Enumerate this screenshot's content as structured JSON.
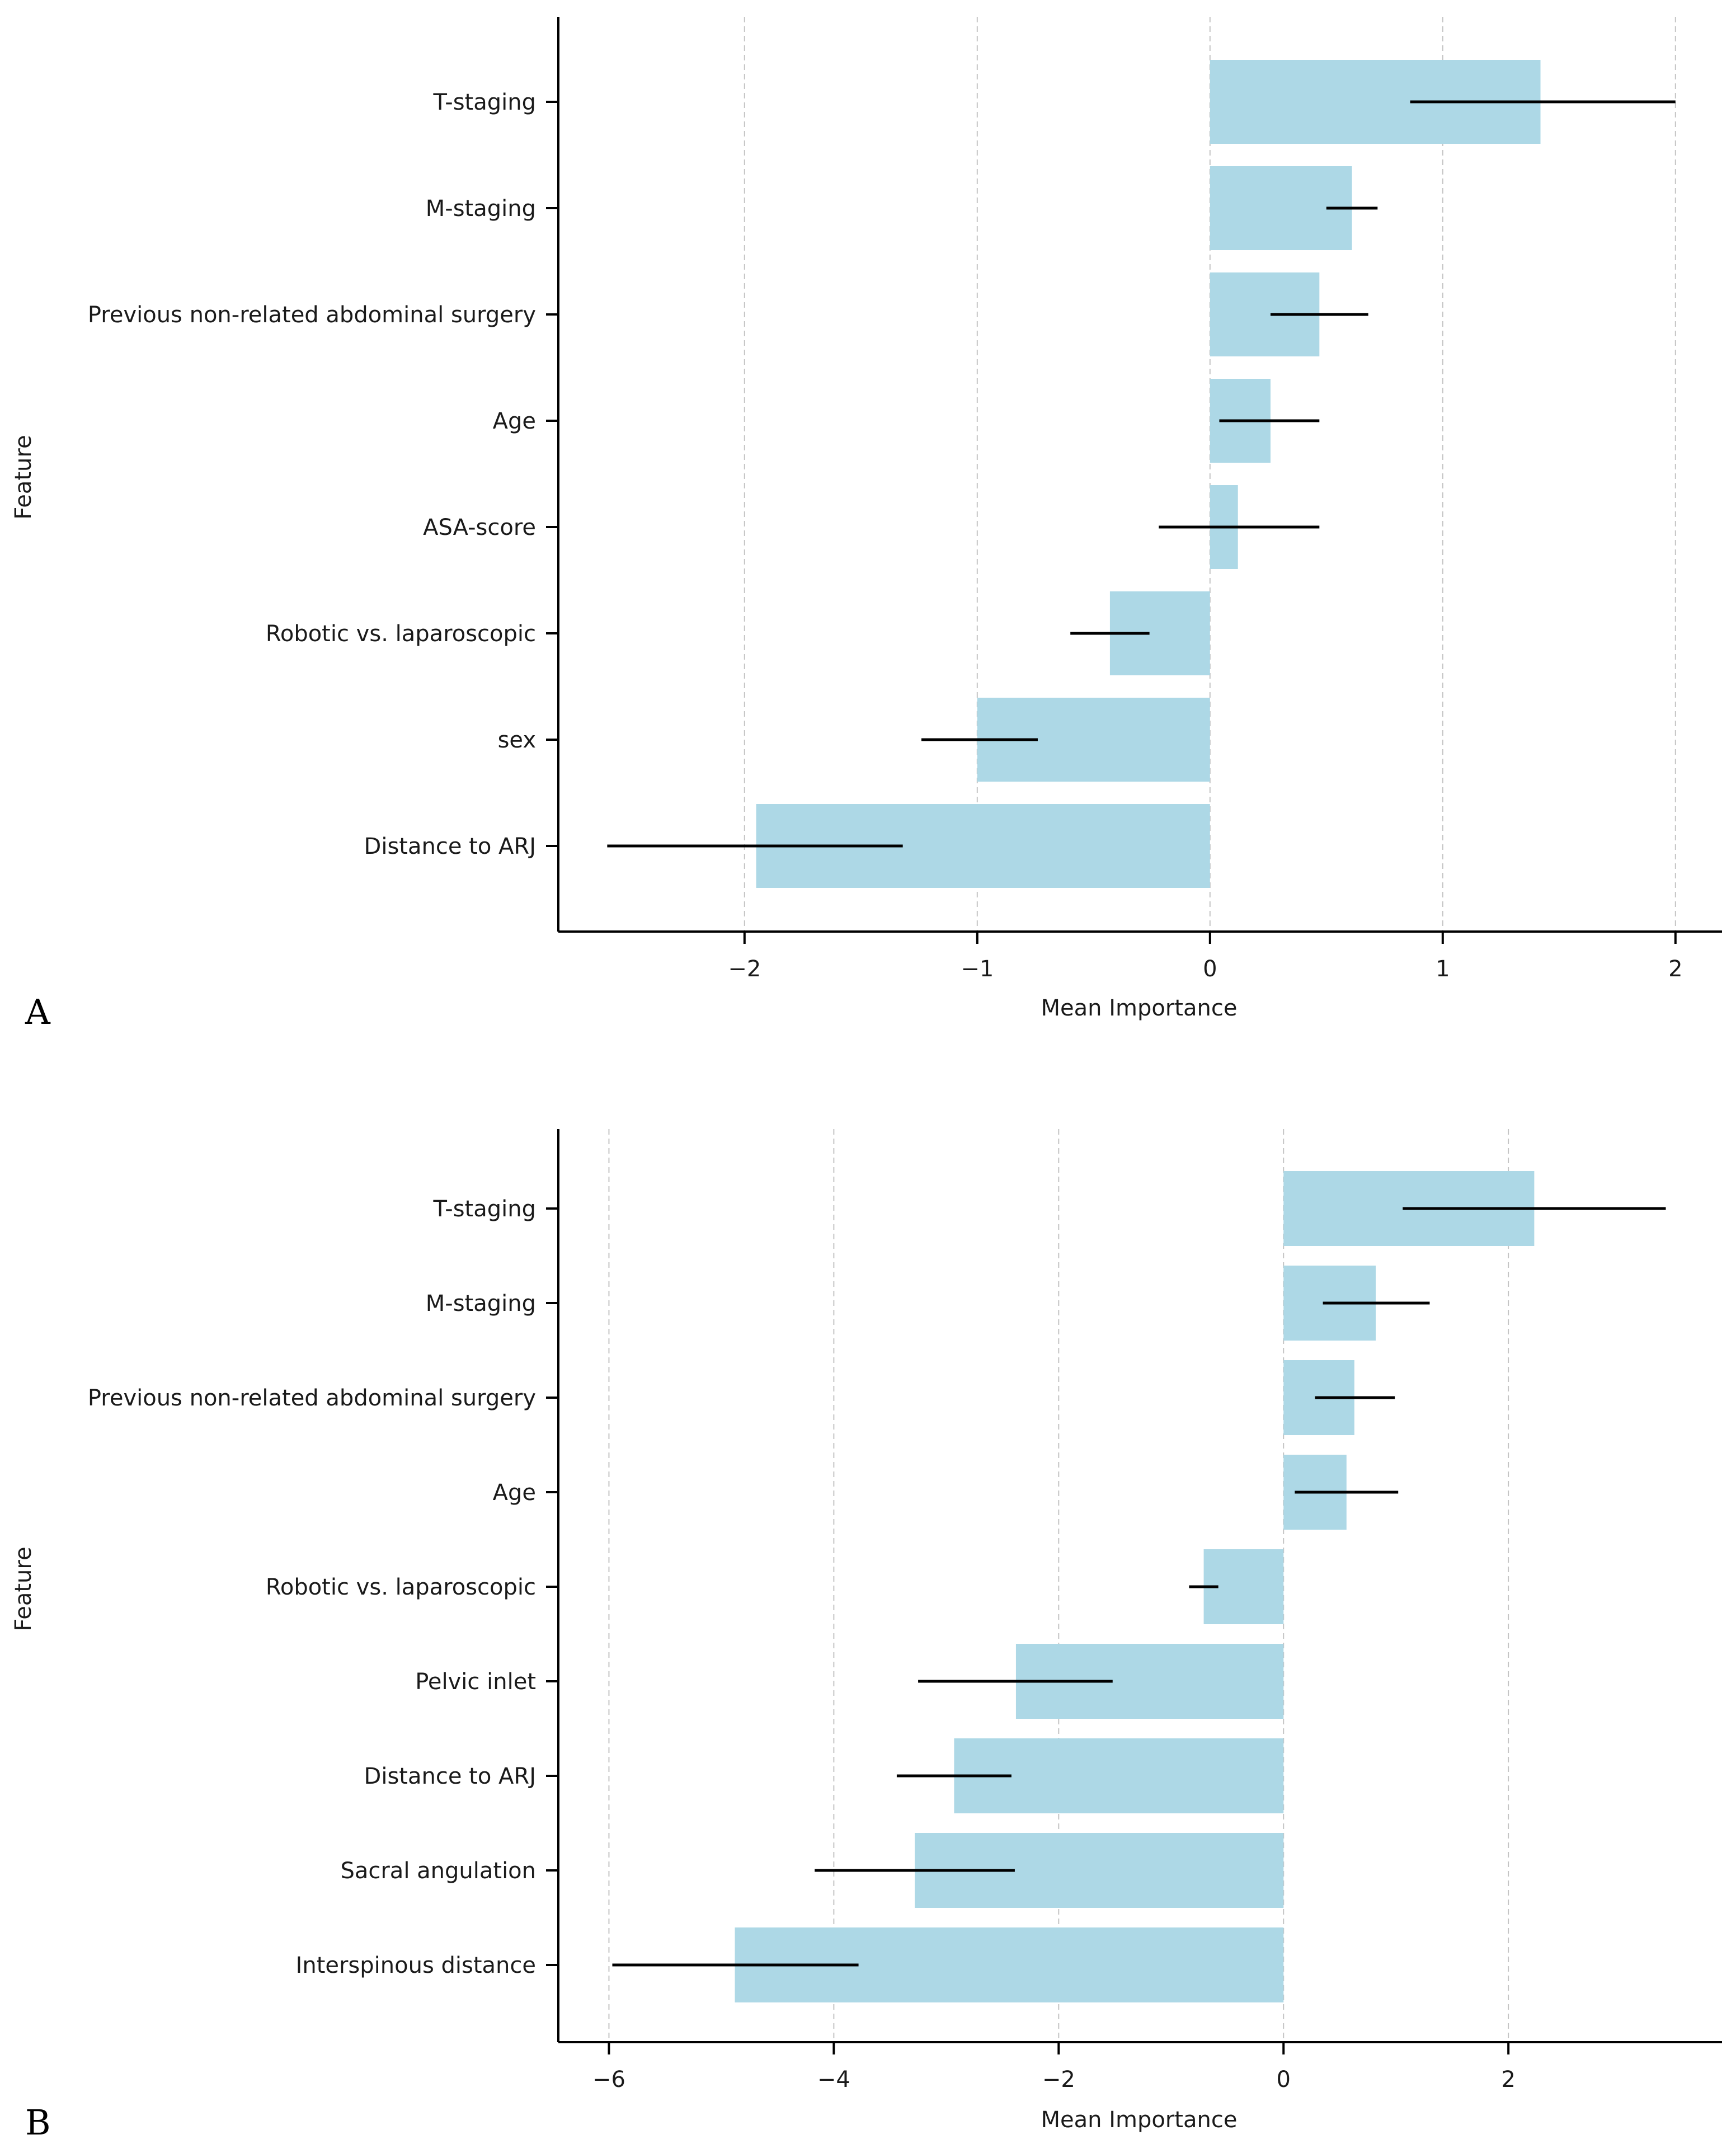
{
  "chart_data": [
    {
      "type": "bar",
      "orientation": "horizontal",
      "panel_label": "A",
      "xlabel": "Mean Importance",
      "ylabel": "Feature",
      "xlim": [
        -2.8,
        2.2
      ],
      "xticks": [
        -2,
        -1,
        0,
        1,
        2
      ],
      "xtick_labels": [
        "−2",
        "−1",
        "0",
        "1",
        "2"
      ],
      "grid": "vertical dashed",
      "categories": [
        "T-staging",
        "M-staging",
        "Previous non-related abdominal surgery",
        "Age",
        "ASA-score",
        "Robotic vs. laparoscopic",
        "sex",
        "Distance to ARJ"
      ],
      "values": [
        1.42,
        0.61,
        0.47,
        0.26,
        0.12,
        -0.43,
        -1.0,
        -1.95
      ],
      "error_low": [
        0.86,
        0.5,
        0.26,
        0.04,
        -0.22,
        -0.6,
        -1.24,
        -2.59
      ],
      "error_high": [
        2.0,
        0.72,
        0.68,
        0.47,
        0.47,
        -0.26,
        -0.74,
        -1.32
      ],
      "bar_color": "#add8e6",
      "error_color": "#000000"
    },
    {
      "type": "bar",
      "orientation": "horizontal",
      "panel_label": "B",
      "xlabel": "Mean Importance",
      "ylabel": "Feature",
      "xlim": [
        -6.45,
        3.9
      ],
      "xticks": [
        -6,
        -4,
        -2,
        0,
        2
      ],
      "xtick_labels": [
        "−6",
        "−4",
        "−2",
        "0",
        "2"
      ],
      "grid": "vertical dashed",
      "categories": [
        "T-staging",
        "M-staging",
        "Previous non-related abdominal surgery",
        "Age",
        "Robotic vs. laparoscopic",
        "Pelvic inlet",
        "Distance to ARJ",
        "Sacral angulation",
        "Interspinous distance"
      ],
      "values": [
        2.23,
        0.82,
        0.63,
        0.56,
        -0.71,
        -2.38,
        -2.93,
        -3.28,
        -4.88
      ],
      "error_low": [
        1.06,
        0.35,
        0.28,
        0.1,
        -0.84,
        -3.25,
        -3.44,
        -4.17,
        -5.97
      ],
      "error_high": [
        3.4,
        1.3,
        0.99,
        1.02,
        -0.58,
        -1.52,
        -2.42,
        -2.39,
        -3.78
      ],
      "bar_color": "#add8e6",
      "error_color": "#000000"
    }
  ]
}
